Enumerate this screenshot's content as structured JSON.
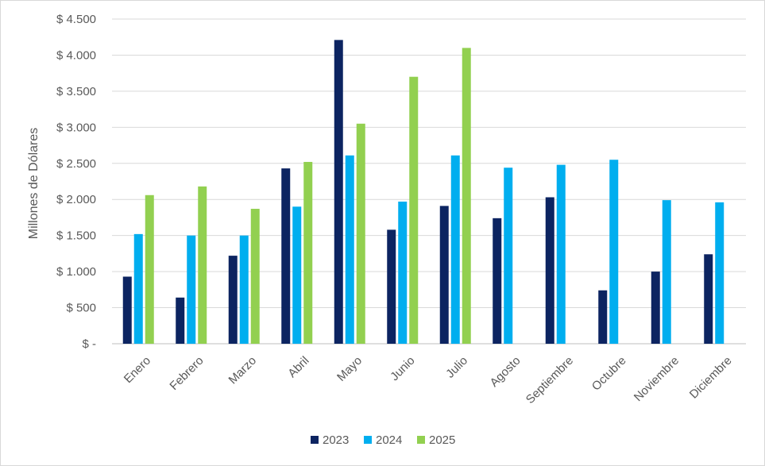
{
  "chart_data": {
    "type": "bar",
    "title": "",
    "xlabel": "",
    "ylabel": "Millones de Dólares",
    "ylim": [
      0,
      4500
    ],
    "yticks": [
      0,
      500,
      1000,
      1500,
      2000,
      2500,
      3000,
      3500,
      4000,
      4500
    ],
    "ytick_labels": [
      "$ -",
      "$ 500",
      "$ 1.000",
      "$ 1.500",
      "$ 2.000",
      "$ 2.500",
      "$ 3.000",
      "$ 3.500",
      "$ 4.000",
      "$ 4.500"
    ],
    "grid": true,
    "legend_position": "bottom",
    "categories": [
      "Enero",
      "Febrero",
      "Marzo",
      "Abril",
      "Mayo",
      "Junio",
      "Julio",
      "Agosto",
      "Septiembre",
      "Octubre",
      "Noviembre",
      "Diciembre"
    ],
    "series": [
      {
        "name": "2023",
        "color": "#0c2461",
        "values": [
          930,
          640,
          1220,
          2430,
          4210,
          1580,
          1910,
          1740,
          2030,
          740,
          1000,
          1240
        ]
      },
      {
        "name": "2024",
        "color": "#00aeef",
        "values": [
          1520,
          1500,
          1500,
          1900,
          2610,
          1970,
          2610,
          2440,
          2480,
          2550,
          1990,
          1960
        ]
      },
      {
        "name": "2025",
        "color": "#92d050",
        "values": [
          2060,
          2180,
          1870,
          2520,
          3050,
          3700,
          4100,
          null,
          null,
          null,
          null,
          null
        ]
      }
    ]
  }
}
